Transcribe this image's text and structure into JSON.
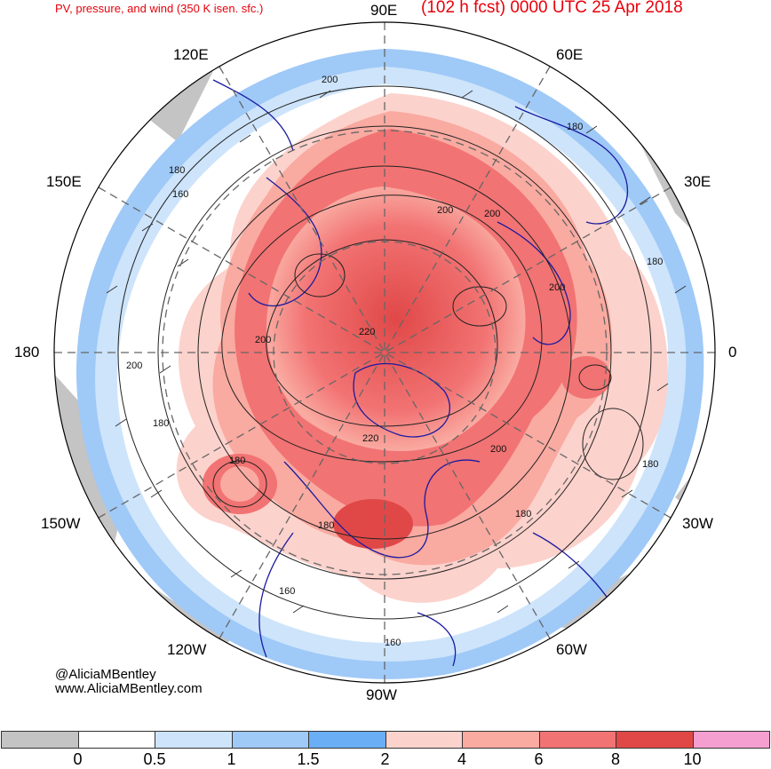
{
  "header": {
    "left_title": "PV, pressure, and wind (350 K isen. sfc.)",
    "right_title": "(102 h fcst) 0000 UTC 25 Apr 2018"
  },
  "longitudes": {
    "n90e": "90E",
    "n120e": "120E",
    "n60e": "60E",
    "n150e": "150E",
    "n30e": "30E",
    "n180": "180",
    "n0": "0",
    "n150w": "150W",
    "n30w": "30W",
    "n120w": "120W",
    "n60w": "60W",
    "n90w": "90W"
  },
  "contour_labels": [
    {
      "id": "c1",
      "text": "200"
    },
    {
      "id": "c2",
      "text": "180"
    },
    {
      "id": "c3",
      "text": "180"
    },
    {
      "id": "c4",
      "text": "160"
    },
    {
      "id": "c5",
      "text": "200"
    },
    {
      "id": "c6",
      "text": "180"
    },
    {
      "id": "c7",
      "text": "200"
    },
    {
      "id": "c8",
      "text": "200"
    },
    {
      "id": "c9",
      "text": "220"
    },
    {
      "id": "c10",
      "text": "180"
    },
    {
      "id": "c11",
      "text": "200"
    },
    {
      "id": "c12",
      "text": "180"
    },
    {
      "id": "c13",
      "text": "220"
    },
    {
      "id": "c14",
      "text": "200"
    },
    {
      "id": "c15",
      "text": "180"
    },
    {
      "id": "c16",
      "text": "180"
    },
    {
      "id": "c17",
      "text": "180"
    },
    {
      "id": "c18",
      "text": "160"
    },
    {
      "id": "c19",
      "text": "160"
    },
    {
      "id": "c20",
      "text": "200"
    }
  ],
  "credits": {
    "handle": "@AliciaMBentley",
    "site": "www.AliciaMBentley.com"
  },
  "colorbar": {
    "ticks": [
      "0",
      "0.5",
      "1",
      "1.5",
      "2",
      "4",
      "6",
      "8",
      "10"
    ],
    "colors": [
      "#c4c4c4",
      "#ffffff",
      "#cde4fb",
      "#9fc9f7",
      "#6aaef5",
      "#fcd2cc",
      "#f9aaa1",
      "#f27373",
      "#e04848",
      "#f49fd0"
    ]
  },
  "colors": {
    "title": "#e8000b",
    "coast": "#1a1aa0",
    "contour": "#222222"
  }
}
